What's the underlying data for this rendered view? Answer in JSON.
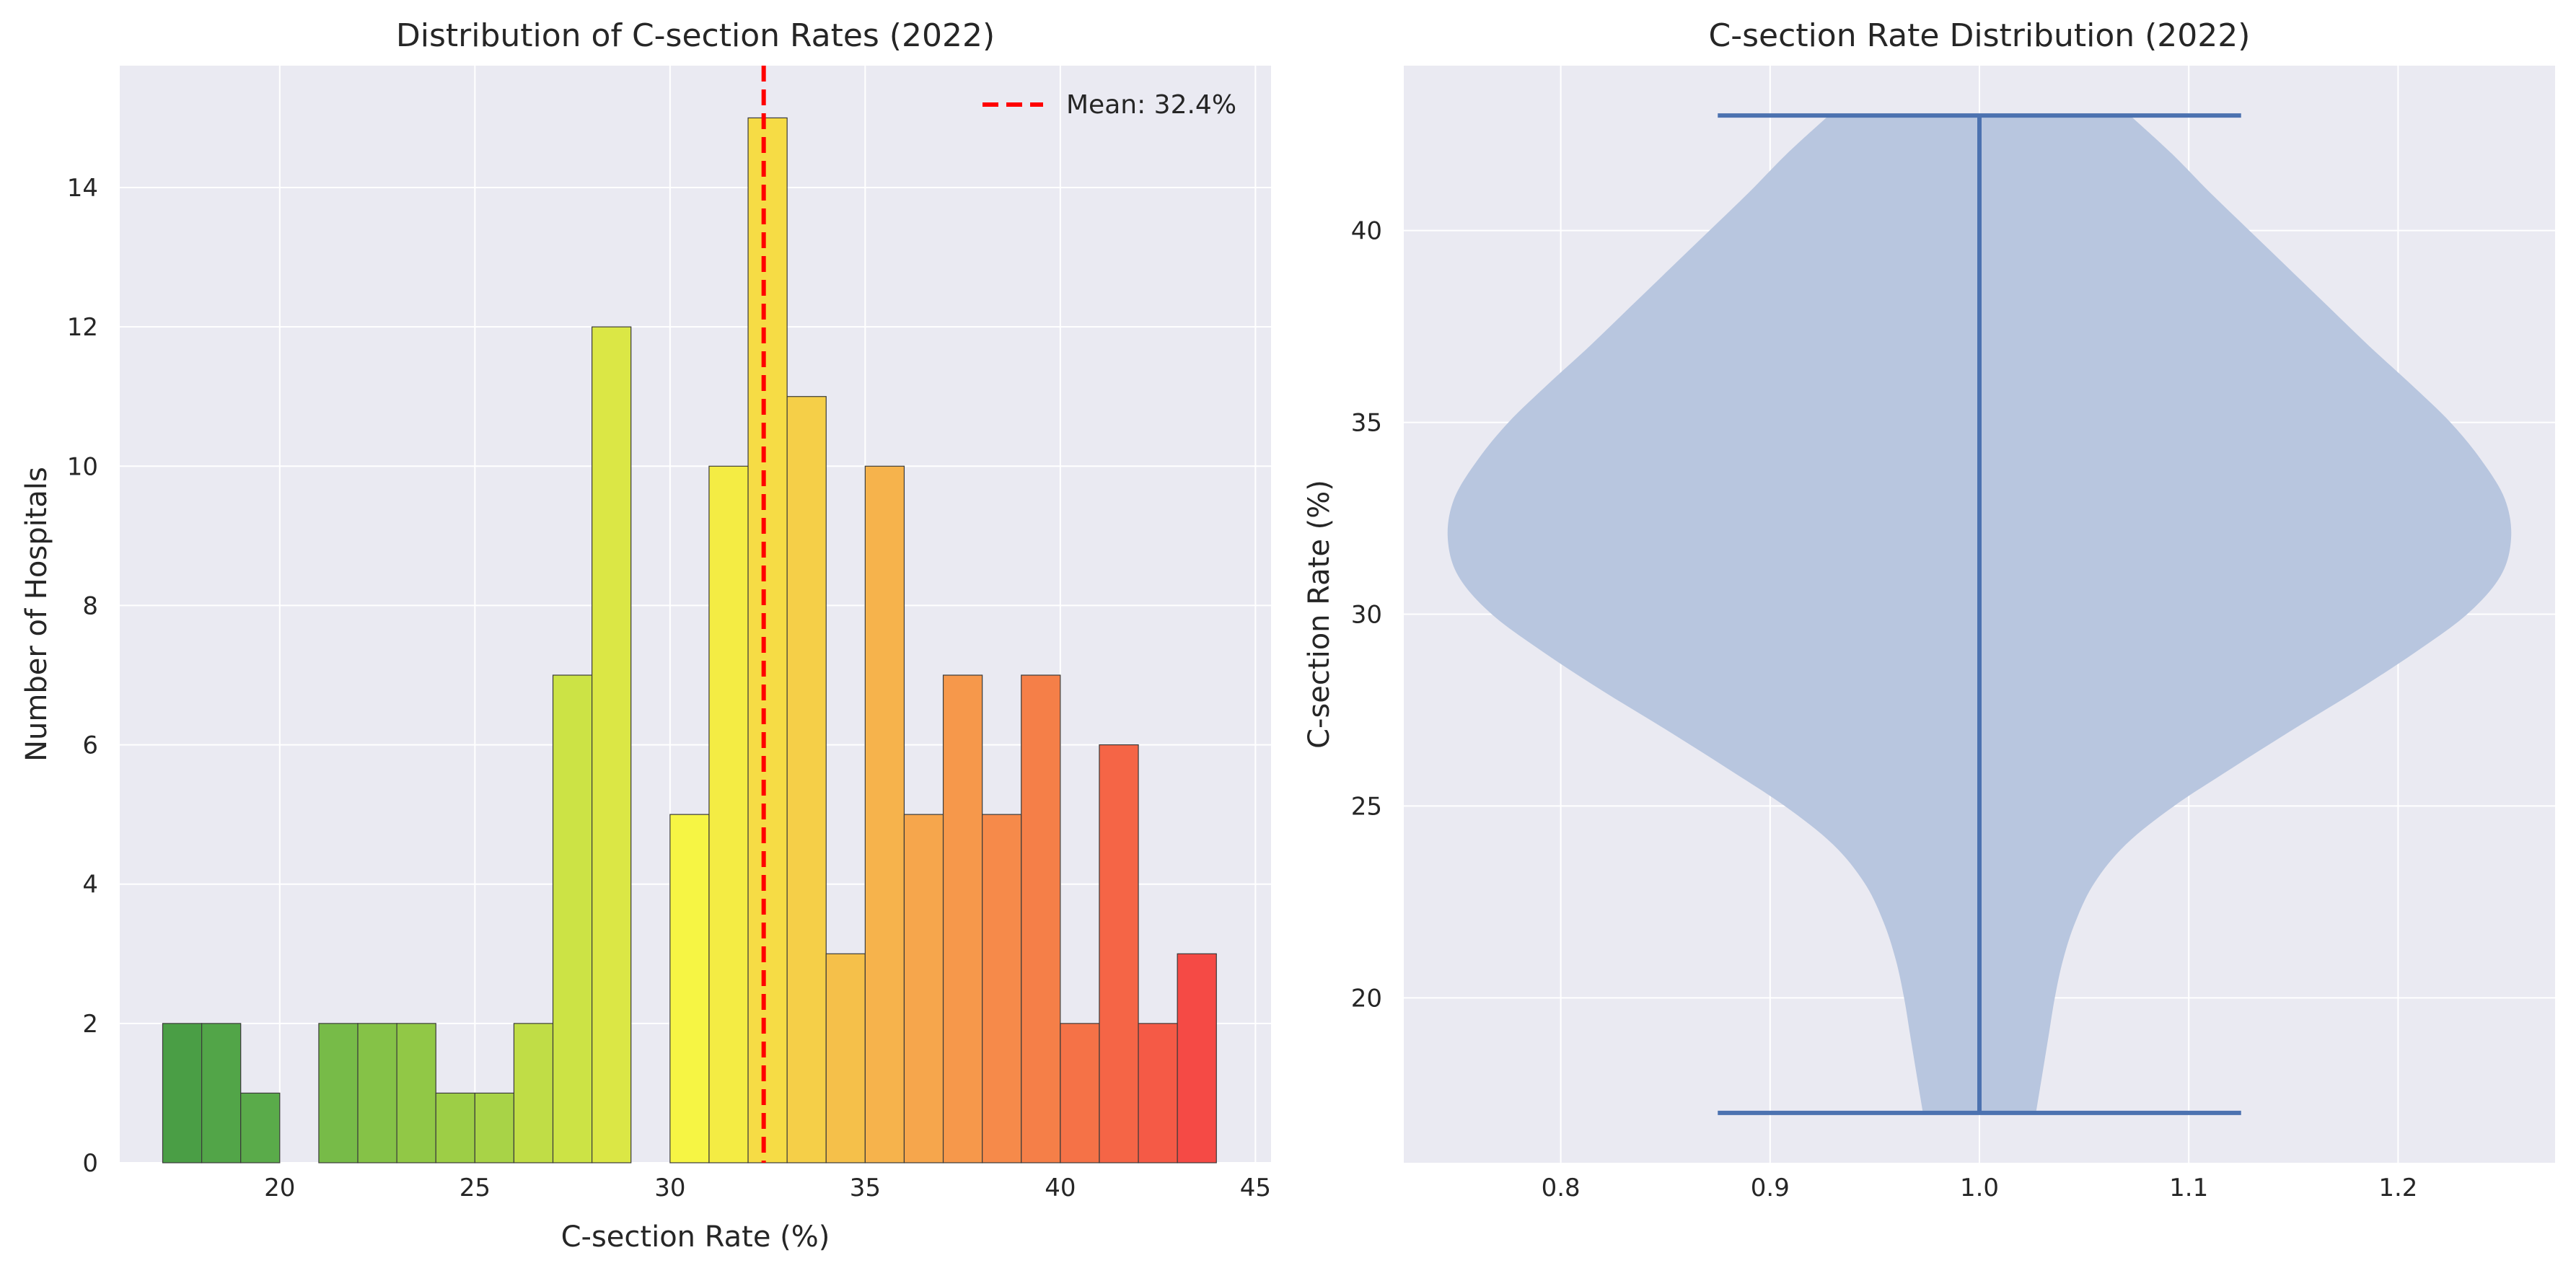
{
  "chart_data": [
    {
      "type": "histogram",
      "title": "Distribution of C-section Rates (2022)",
      "xlabel": "C-section Rate (%)",
      "ylabel": "Number of Hospitals",
      "xlim": [
        15.9,
        45.4
      ],
      "ylim": [
        0,
        15.75
      ],
      "xticks": [
        20,
        25,
        30,
        35,
        40,
        45
      ],
      "yticks": [
        0,
        2,
        4,
        6,
        8,
        10,
        12,
        14
      ],
      "grid": true,
      "legend_position": "top-right",
      "bins": [
        {
          "x0": 17.0,
          "x1": 18.0,
          "count": 2,
          "color": "#4a9e45"
        },
        {
          "x0": 18.0,
          "x1": 19.0,
          "count": 2,
          "color": "#52a548"
        },
        {
          "x0": 19.0,
          "x1": 20.0,
          "count": 1,
          "color": "#5aab4a"
        },
        {
          "x0": 20.0,
          "x1": 21.0,
          "count": 0,
          "color": "#62b04c"
        },
        {
          "x0": 21.0,
          "x1": 22.0,
          "count": 2,
          "color": "#77bb48"
        },
        {
          "x0": 22.0,
          "x1": 23.0,
          "count": 2,
          "color": "#85c247"
        },
        {
          "x0": 23.0,
          "x1": 24.0,
          "count": 2,
          "color": "#91c846"
        },
        {
          "x0": 24.0,
          "x1": 25.0,
          "count": 1,
          "color": "#9dce46"
        },
        {
          "x0": 25.0,
          "x1": 26.0,
          "count": 1,
          "color": "#a8d347"
        },
        {
          "x0": 26.0,
          "x1": 27.0,
          "count": 2,
          "color": "#c0dd46"
        },
        {
          "x0": 27.0,
          "x1": 28.0,
          "count": 7,
          "color": "#cce345"
        },
        {
          "x0": 28.0,
          "x1": 29.0,
          "count": 12,
          "color": "#dbe745"
        },
        {
          "x0": 29.0,
          "x1": 30.0,
          "count": 0,
          "color": "#e6eb45"
        },
        {
          "x0": 30.0,
          "x1": 31.0,
          "count": 5,
          "color": "#f6f544"
        },
        {
          "x0": 31.0,
          "x1": 32.0,
          "count": 10,
          "color": "#f4ec44"
        },
        {
          "x0": 32.0,
          "x1": 33.0,
          "count": 15,
          "color": "#f6dc45"
        },
        {
          "x0": 33.0,
          "x1": 34.0,
          "count": 11,
          "color": "#f5cf48"
        },
        {
          "x0": 34.0,
          "x1": 35.0,
          "count": 3,
          "color": "#f5c04a"
        },
        {
          "x0": 35.0,
          "x1": 36.0,
          "count": 10,
          "color": "#f6b34c"
        },
        {
          "x0": 36.0,
          "x1": 37.0,
          "count": 5,
          "color": "#f6a64c"
        },
        {
          "x0": 37.0,
          "x1": 38.0,
          "count": 7,
          "color": "#f6984b"
        },
        {
          "x0": 38.0,
          "x1": 39.0,
          "count": 5,
          "color": "#f68a4a"
        },
        {
          "x0": 39.0,
          "x1": 40.0,
          "count": 7,
          "color": "#f57f48"
        },
        {
          "x0": 40.0,
          "x1": 41.0,
          "count": 2,
          "color": "#f57247"
        },
        {
          "x0": 41.0,
          "x1": 42.0,
          "count": 6,
          "color": "#f56546"
        },
        {
          "x0": 42.0,
          "x1": 43.0,
          "count": 2,
          "color": "#f55a46"
        },
        {
          "x0": 43.0,
          "x1": 44.0,
          "count": 3,
          "color": "#f54a45"
        }
      ],
      "mean_line": {
        "value": 32.4,
        "label": "Mean: 32.4%",
        "color": "#ff0000",
        "style": "dashed"
      }
    },
    {
      "type": "violin",
      "title": "C-section Rate Distribution (2022)",
      "xlabel": "",
      "ylabel": "C-section Rate (%)",
      "xlim": [
        0.725,
        1.275
      ],
      "ylim": [
        15.7,
        44.3
      ],
      "xticks": [
        0.8,
        0.9,
        1.0,
        1.1,
        1.2
      ],
      "yticks": [
        20,
        25,
        30,
        35,
        40
      ],
      "grid": true,
      "position": 1.0,
      "min": 17.0,
      "max": 43.0,
      "body_color": "#b8c6df",
      "line_color": "#4c72b0",
      "density_profile": [
        {
          "y": 17.0,
          "halfwidth": 0.027
        },
        {
          "y": 18.0,
          "halfwidth": 0.03
        },
        {
          "y": 19.0,
          "halfwidth": 0.033
        },
        {
          "y": 20.0,
          "halfwidth": 0.036
        },
        {
          "y": 21.0,
          "halfwidth": 0.04
        },
        {
          "y": 22.0,
          "halfwidth": 0.046
        },
        {
          "y": 23.0,
          "halfwidth": 0.055
        },
        {
          "y": 24.0,
          "halfwidth": 0.07
        },
        {
          "y": 25.0,
          "halfwidth": 0.093
        },
        {
          "y": 26.0,
          "halfwidth": 0.121
        },
        {
          "y": 27.0,
          "halfwidth": 0.15
        },
        {
          "y": 28.0,
          "halfwidth": 0.18
        },
        {
          "y": 29.0,
          "halfwidth": 0.208
        },
        {
          "y": 30.0,
          "halfwidth": 0.233
        },
        {
          "y": 31.0,
          "halfwidth": 0.249
        },
        {
          "y": 32.0,
          "halfwidth": 0.254
        },
        {
          "y": 33.0,
          "halfwidth": 0.251
        },
        {
          "y": 34.0,
          "halfwidth": 0.24
        },
        {
          "y": 35.0,
          "halfwidth": 0.225
        },
        {
          "y": 36.0,
          "halfwidth": 0.206
        },
        {
          "y": 37.0,
          "halfwidth": 0.186
        },
        {
          "y": 38.0,
          "halfwidth": 0.167
        },
        {
          "y": 39.0,
          "halfwidth": 0.148
        },
        {
          "y": 40.0,
          "halfwidth": 0.129
        },
        {
          "y": 41.0,
          "halfwidth": 0.11
        },
        {
          "y": 42.0,
          "halfwidth": 0.092
        },
        {
          "y": 43.0,
          "halfwidth": 0.072
        }
      ]
    }
  ]
}
